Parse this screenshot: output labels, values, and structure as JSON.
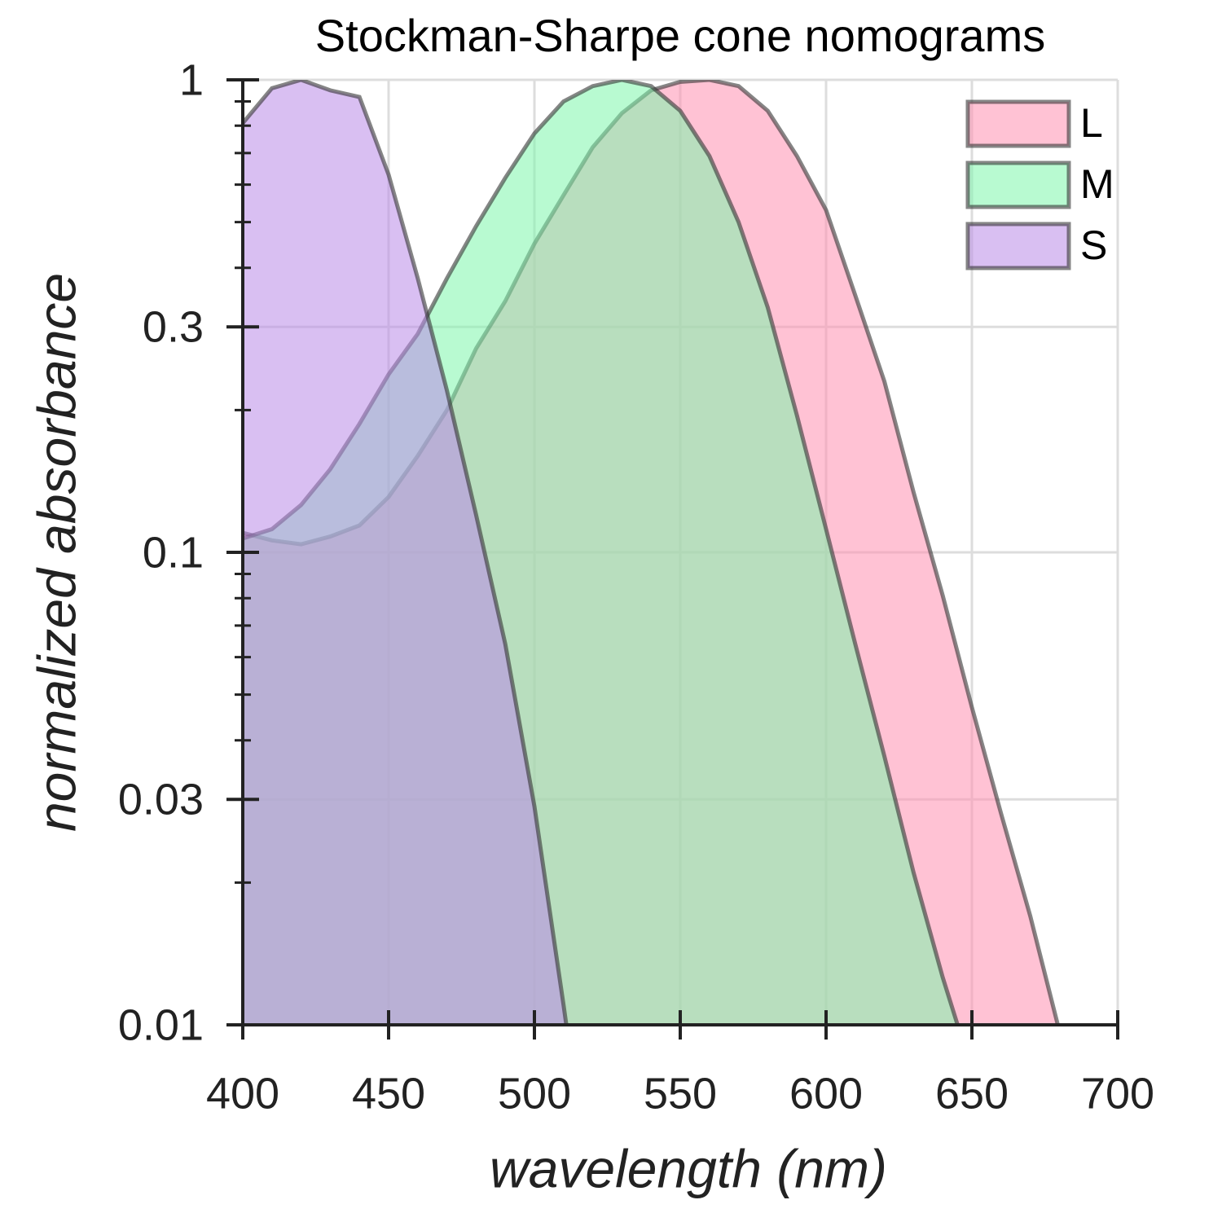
{
  "chart_data": {
    "type": "area",
    "title": "Stockman-Sharpe cone nomograms",
    "xlabel": "wavelength (nm)",
    "ylabel": "normalized absorbance",
    "x": [
      400,
      410,
      420,
      430,
      440,
      450,
      460,
      470,
      480,
      490,
      500,
      510,
      520,
      530,
      540,
      550,
      560,
      570,
      580,
      590,
      600,
      610,
      620,
      630,
      640,
      650,
      660,
      670,
      680
    ],
    "series": [
      {
        "name": "L",
        "color": "#ff8fb0",
        "values": [
          0.11,
          0.106,
          0.104,
          0.108,
          0.114,
          0.131,
          0.16,
          0.2,
          0.27,
          0.34,
          0.45,
          0.57,
          0.72,
          0.85,
          0.95,
          0.99,
          1.0,
          0.97,
          0.86,
          0.69,
          0.53,
          0.35,
          0.23,
          0.134,
          0.081,
          0.047,
          0.028,
          0.017,
          0.0097
        ]
      },
      {
        "name": "M",
        "color": "#7ef5ab",
        "values": [
          0.107,
          0.112,
          0.126,
          0.15,
          0.187,
          0.238,
          0.29,
          0.38,
          0.49,
          0.62,
          0.77,
          0.9,
          0.97,
          1.0,
          0.97,
          0.86,
          0.69,
          0.5,
          0.33,
          0.195,
          0.112,
          0.064,
          0.037,
          0.021,
          0.0126,
          0.008,
          null,
          null,
          null
        ]
      },
      {
        "name": "S",
        "color": "#b98ae8",
        "values": [
          0.81,
          0.96,
          1.0,
          0.95,
          0.92,
          0.63,
          0.38,
          0.22,
          0.12,
          0.064,
          0.029,
          0.011,
          0.004,
          null,
          null,
          null,
          null,
          null,
          null,
          null,
          null,
          null,
          null,
          null,
          null,
          null,
          null,
          null,
          null
        ]
      }
    ],
    "xlim": [
      400,
      700
    ],
    "xticks": [
      400,
      450,
      500,
      550,
      600,
      650,
      700
    ],
    "ylim": [
      0.01,
      1
    ],
    "log_y": true,
    "grid": true,
    "legend": "upper right",
    "yticks": [
      0.01,
      0.03,
      0.1,
      0.3,
      1
    ],
    "yminor_ticks": [
      0.02,
      0.04,
      0.05,
      0.06,
      0.07,
      0.08,
      0.09,
      0.2,
      0.4,
      0.5,
      0.6,
      0.7,
      0.8,
      0.9
    ]
  }
}
